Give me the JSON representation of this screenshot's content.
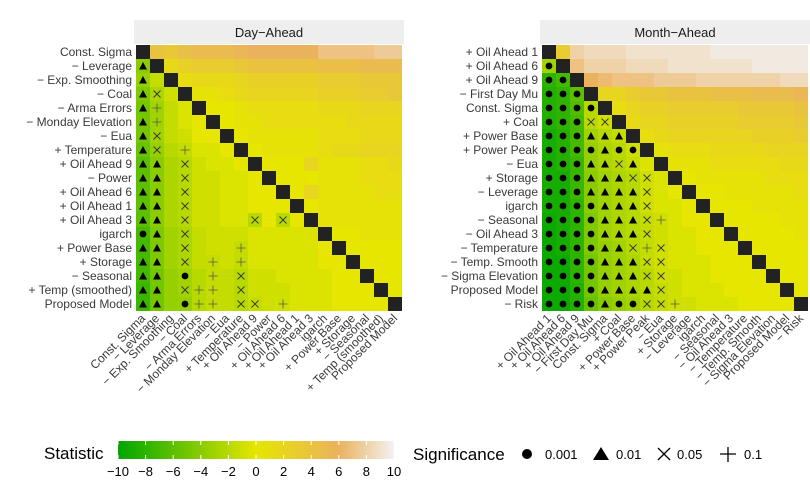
{
  "chart_data": [
    {
      "type": "heatmap",
      "title": "Day−Ahead",
      "variables": [
        "Const. Sigma",
        "− Leverage",
        "− Exp. Smoothing",
        "− Coal",
        "− Arma Errors",
        "− Monday Elevation",
        "− Eua",
        "+ Temperature",
        "+ Oil Ahead 9",
        "− Power",
        "+ Oil Ahead 6",
        "+ Oil Ahead 1",
        "+ Oil Ahead 3",
        "igarch",
        "+ Power Base",
        "+ Storage",
        "− Seasonal",
        "+ Temp (smoothed)",
        "Proposed Model"
      ],
      "x_tick_labels": [
        "Const. Sigma",
        "− Leverage",
        "− Exp. Smoothing",
        "− Coal",
        "− Arma Errors",
        "− Monday Elevation",
        "− Eua",
        "+ Temperature",
        "+ Oil Ahead 9",
        "− Power",
        "+ Oil Ahead 6",
        "+ Oil Ahead 1",
        "+ Oil Ahead 3",
        "igarch",
        "+ Power Base",
        "+ Storage",
        "− Seasonal",
        "+ Temp (smoothed)",
        "Proposed Model"
      ],
      "lower": [
        [],
        [
          "0.01"
        ],
        [
          "0.01",
          ""
        ],
        [
          "0.01",
          "0.05",
          ""
        ],
        [
          "0.01",
          "0.1",
          "",
          ""
        ],
        [
          "0.01",
          "0.1",
          "",
          "",
          ""
        ],
        [
          "0.01",
          "0.05",
          "",
          "",
          "",
          ""
        ],
        [
          "0.01",
          "0.05",
          "",
          "0.1",
          "",
          "",
          ""
        ],
        [
          "0.01",
          "0.01",
          "",
          "0.05",
          "",
          "",
          "",
          ""
        ],
        [
          "0.01",
          "0.01",
          "",
          "0.05",
          "",
          "",
          "",
          "",
          ""
        ],
        [
          "0.01",
          "0.01",
          "",
          "0.05",
          "",
          "",
          "",
          "",
          "",
          ""
        ],
        [
          "0.01",
          "0.01",
          "",
          "0.05",
          "",
          "",
          "",
          "",
          "",
          "",
          ""
        ],
        [
          "0.01",
          "0.01",
          "",
          "0.05",
          "",
          "",
          "",
          "",
          "0.05",
          "",
          "0.05",
          ""
        ],
        [
          "0.001",
          "0.01",
          "",
          "0.05",
          "",
          "",
          "",
          "",
          "",
          "",
          "",
          "",
          ""
        ],
        [
          "0.01",
          "0.01",
          "",
          "0.05",
          "",
          "",
          "",
          "0.1",
          "",
          "",
          "",
          "",
          "",
          ""
        ],
        [
          "0.01",
          "0.01",
          "",
          "0.05",
          "",
          "0.1",
          "",
          "0.1",
          "",
          "",
          "",
          "",
          "",
          "",
          ""
        ],
        [
          "0.01",
          "0.01",
          "",
          "0.001",
          "",
          "0.1",
          "",
          "0.05",
          "",
          "",
          "",
          "",
          "",
          "",
          "",
          ""
        ],
        [
          "0.01",
          "0.01",
          "",
          "0.05",
          "0.1",
          "0.1",
          "",
          "0.05",
          "",
          "",
          "",
          "",
          "",
          "",
          "",
          "",
          ""
        ],
        [
          "0.01",
          "0.01",
          "",
          "0.001",
          "0.1",
          "0.1",
          "",
          "0.05",
          "0.05",
          "",
          "0.1",
          "",
          "",
          "",
          "",
          "",
          "",
          ""
        ]
      ],
      "values_lower": [
        [],
        [
          -4
        ],
        [
          -3.5,
          -1.5
        ],
        [
          -4.5,
          -2.5,
          -1
        ],
        [
          -5,
          -3,
          -1.5,
          -0.5
        ],
        [
          -5,
          -3,
          -1.5,
          -0.5,
          0
        ],
        [
          -5,
          -3,
          -1.5,
          -1,
          0,
          0
        ],
        [
          -5.5,
          -3.5,
          -2,
          -1.5,
          -0.5,
          -0.5,
          0
        ],
        [
          -6,
          -4,
          -2.5,
          -2,
          -1,
          -0.5,
          -0.5,
          0
        ],
        [
          -6,
          -4,
          -2.5,
          -2,
          -1,
          -1,
          -0.5,
          -0.5,
          0
        ],
        [
          -6,
          -4,
          -2.5,
          -2,
          -1,
          -1,
          -0.5,
          -0.5,
          0,
          0
        ],
        [
          -6,
          -4,
          -2.5,
          -2,
          -1,
          -1,
          -0.5,
          -0.5,
          0,
          0,
          0
        ],
        [
          -6,
          -4,
          -2.5,
          -2,
          -1,
          -1,
          -0.5,
          -0.5,
          -2,
          0,
          -2,
          0
        ],
        [
          -7,
          -4.5,
          -3,
          -2.5,
          -1.5,
          -1,
          -1,
          -1,
          -0.5,
          -0.5,
          -0.5,
          -0.5,
          -0.5
        ],
        [
          -7,
          -4.5,
          -3,
          -2.5,
          -1.5,
          -1,
          -1,
          -1.5,
          -0.5,
          -0.5,
          -0.5,
          -0.5,
          -0.5,
          0
        ],
        [
          -7,
          -4.5,
          -3,
          -2.5,
          -1.5,
          -1.5,
          -1,
          -1.5,
          -0.5,
          -0.5,
          -0.5,
          -0.5,
          -0.5,
          0,
          0
        ],
        [
          -7,
          -5,
          -3.5,
          -3,
          -2,
          -1.5,
          -1.5,
          -2,
          -1,
          -1,
          -0.5,
          -0.5,
          -0.5,
          -0.5,
          0,
          0
        ],
        [
          -7.5,
          -5,
          -3.5,
          -3,
          -2,
          -1.5,
          -1.5,
          -2,
          -1,
          -1,
          -1,
          -0.5,
          -0.5,
          -0.5,
          0,
          0,
          0
        ],
        [
          -7.5,
          -5,
          -3.5,
          -3.5,
          -2,
          -1.5,
          -1.5,
          -2,
          -1.5,
          -1,
          -1,
          -0.5,
          -0.5,
          -0.5,
          0,
          0,
          0,
          0
        ]
      ]
    },
    {
      "type": "heatmap",
      "title": "Month−Ahead",
      "variables": [
        "+ Oil Ahead 1",
        "+ Oil Ahead 6",
        "+ Oil Ahead 9",
        "− First Day Mu",
        "Const. Sigma",
        "+ Coal",
        "+ Power Base",
        "+ Power Peak",
        "− Eua",
        "+ Storage",
        "− Leverage",
        "igarch",
        "− Seasonal",
        "− Oil Ahead 3",
        "− Temperature",
        "− Temp. Smooth",
        "− Sigma Elevation",
        "Proposed Model",
        "− Risk"
      ],
      "x_tick_labels": [
        "+ Oil Ahead 1",
        "+ Oil Ahead 6",
        "+ Oil Ahead 9",
        "− First Day Mu",
        "Const. Sigma",
        "+ Coal",
        "+ Power Base",
        "+ Power Peak",
        "− Eua",
        "+ Storage",
        "− Leverage",
        "igarch",
        "− Seasonal",
        "− Oil Ahead 3",
        "− Temperature",
        "− Temp. Smooth",
        "− Sigma Elevation",
        "Proposed Model",
        "− Risk"
      ],
      "lower": [
        [],
        [
          "0.001"
        ],
        [
          "0.001",
          "0.001"
        ],
        [
          "0.001",
          "0.001",
          "0.001"
        ],
        [
          "0.001",
          "0.001",
          "0.001",
          "0.001"
        ],
        [
          "0.001",
          "0.001",
          "0.001",
          "0.05",
          "0.05"
        ],
        [
          "0.001",
          "0.001",
          "0.001",
          "0.01",
          "0.01",
          "0.01"
        ],
        [
          "0.001",
          "0.001",
          "0.001",
          "0.001",
          "0.01",
          "0.001",
          "0.001"
        ],
        [
          "0.001",
          "0.001",
          "0.001",
          "0.01",
          "0.01",
          "0.05",
          "0.01",
          ""
        ],
        [
          "0.001",
          "0.001",
          "0.001",
          "0.01",
          "0.01",
          "0.01",
          "0.05",
          "0.05",
          ""
        ],
        [
          "0.001",
          "0.001",
          "0.001",
          "0.01",
          "0.01",
          "0.01",
          "0.01",
          "0.05",
          "",
          ""
        ],
        [
          "0.001",
          "0.001",
          "0.001",
          "0.001",
          "0.01",
          "0.01",
          "0.01",
          "0.05",
          "",
          "",
          ""
        ],
        [
          "0.001",
          "0.001",
          "0.001",
          "0.001",
          "0.01",
          "0.01",
          "0.01",
          "0.05",
          "0.1",
          "",
          "",
          ""
        ],
        [
          "0.001",
          "0.001",
          "0.001",
          "0.001",
          "0.01",
          "0.01",
          "0.01",
          "0.05",
          "",
          "",
          "",
          "",
          ""
        ],
        [
          "0.001",
          "0.001",
          "0.001",
          "0.001",
          "0.01",
          "0.01",
          "0.05",
          "0.1",
          "0.05",
          "",
          "",
          "",
          "",
          ""
        ],
        [
          "0.001",
          "0.001",
          "0.001",
          "0.001",
          "0.01",
          "0.01",
          "0.01",
          "0.05",
          "0.05",
          "",
          "",
          "",
          "",
          "",
          ""
        ],
        [
          "0.001",
          "0.001",
          "0.001",
          "0.001",
          "0.01",
          "0.01",
          "0.01",
          "0.05",
          "0.05",
          "",
          "",
          "",
          "",
          "",
          "",
          ""
        ],
        [
          "0.001",
          "0.001",
          "0.001",
          "0.001",
          "0.01",
          "0.01",
          "0.01",
          "0.01",
          "0.05",
          "",
          "",
          "",
          "",
          "",
          "",
          "",
          ""
        ],
        [
          "0.001",
          "0.001",
          "0.001",
          "0.001",
          "0.01",
          "0.001",
          "0.001",
          "0.05",
          "0.05",
          "0.1",
          "",
          "",
          "",
          "",
          "",
          "",
          "",
          ""
        ]
      ],
      "values_lower": [
        [],
        [
          -3
        ],
        [
          -8,
          -7
        ],
        [
          -8.5,
          -8,
          -6
        ],
        [
          -8.5,
          -8,
          -6.5,
          -2
        ],
        [
          -8.5,
          -8,
          -7,
          -2,
          -1
        ],
        [
          -9,
          -8.5,
          -7,
          -3,
          -2,
          -1.5
        ],
        [
          -9,
          -8.5,
          -7,
          -3.5,
          -2.5,
          -2,
          -1
        ],
        [
          -9,
          -8.5,
          -7.5,
          -3.5,
          -2.5,
          -2,
          -1.5,
          -0.5
        ],
        [
          -9,
          -9,
          -7.5,
          -4,
          -3,
          -2.5,
          -2,
          -1,
          -0.5
        ],
        [
          -9,
          -9,
          -7.5,
          -4,
          -3,
          -2.5,
          -2,
          -1,
          -0.5,
          0
        ],
        [
          -9,
          -9,
          -8,
          -4,
          -3,
          -2.5,
          -2,
          -1,
          -0.5,
          -0.5,
          0
        ],
        [
          -9.5,
          -9,
          -8,
          -4.5,
          -3,
          -2.5,
          -2,
          -1.5,
          -1,
          -0.5,
          0,
          0
        ],
        [
          -9.5,
          -9,
          -8,
          -4.5,
          -3,
          -2.5,
          -2,
          -1.5,
          -1,
          -0.5,
          -0.5,
          0,
          0
        ],
        [
          -9.5,
          -9,
          -8,
          -4.5,
          -3.5,
          -3,
          -2,
          -1.5,
          -1,
          -0.5,
          -0.5,
          0,
          0,
          0
        ],
        [
          -9.5,
          -9.5,
          -8,
          -5,
          -3.5,
          -3,
          -2.5,
          -1.5,
          -1,
          -0.5,
          -0.5,
          -0.5,
          0,
          0,
          0
        ],
        [
          -9.5,
          -9.5,
          -8,
          -5,
          -3.5,
          -3,
          -2.5,
          -2,
          -1,
          -1,
          -0.5,
          -0.5,
          0,
          0,
          0,
          0
        ],
        [
          -9.5,
          -9.5,
          -8.5,
          -5,
          -3.5,
          -3,
          -2.5,
          -2,
          -1.5,
          -1,
          -0.5,
          -0.5,
          -0.5,
          0,
          0,
          0,
          0
        ],
        [
          -9.5,
          -9.5,
          -8.5,
          -5.5,
          -4,
          -3.5,
          -3,
          -2,
          -1.5,
          -1,
          -1,
          -0.5,
          -0.5,
          -0.5,
          0,
          0,
          0,
          0
        ]
      ]
    }
  ],
  "legend": {
    "statistic_title": "Statistic",
    "statistic_ticks": [
      "−10",
      "−8",
      "−6",
      "−4",
      "−2",
      "0",
      "2",
      "4",
      "6",
      "8",
      "10"
    ],
    "statistic_range": [
      -10,
      10
    ],
    "significance_title": "Significance",
    "significance_items": [
      {
        "symbol": "circle",
        "label": "0.001"
      },
      {
        "symbol": "triangle",
        "label": "0.01"
      },
      {
        "symbol": "cross",
        "label": "0.05"
      },
      {
        "symbol": "plus",
        "label": "0.1"
      }
    ]
  },
  "colors": {
    "low": "#00a600",
    "mid": "#e6e600",
    "high": "#f2c8c0",
    "diagonal": "#222222",
    "strip": "#eeeeee"
  }
}
